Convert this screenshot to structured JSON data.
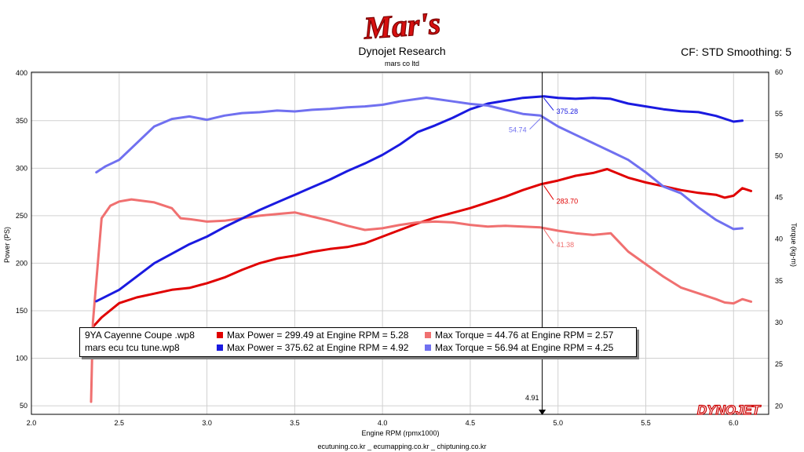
{
  "header": {
    "logo_text": "Mar's",
    "title": "Dynojet Research",
    "subtitle": "mars co ltd",
    "correction": "CF: STD Smoothing: 5",
    "brand": "DYNOJET"
  },
  "footer": {
    "text": "ecutuning.co.kr _ ecumapping.co.kr _ chiptuning.co.kr"
  },
  "colors": {
    "run1_power": "#e00000",
    "run1_torque": "#f07070",
    "run2_power": "#1a1ae0",
    "run2_torque": "#7070f0"
  },
  "legend": {
    "rows": [
      {
        "file": "9YA Cayenne Coupe .wp8",
        "power": "Max Power = 299.49 at Engine RPM = 5.28",
        "torque": "Max Torque = 44.76 at Engine RPM = 2.57"
      },
      {
        "file": "mars ecu tcu tune.wp8",
        "power": "Max Power = 375.62 at Engine RPM = 4.92",
        "torque": "Max Torque = 56.94 at Engine RPM = 4.25"
      }
    ]
  },
  "chart_data": {
    "type": "line",
    "xlabel": "Engine RPM (rpmx1000)",
    "ylabel": "Power (PS)",
    "y2label": "Torque (kg-m)",
    "xlim": [
      2.0,
      6.2
    ],
    "ylim": [
      41,
      401
    ],
    "y2lim": [
      19,
      60
    ],
    "xticks": [
      "2.0",
      "2.5",
      "3.0",
      "3.5",
      "4.0",
      "4.5",
      "5.0",
      "5.5",
      "6.0"
    ],
    "yticks": [
      "50",
      "100",
      "150",
      "200",
      "250",
      "300",
      "350",
      "400"
    ],
    "y2ticks": [
      "20",
      "25",
      "30",
      "35",
      "40",
      "45",
      "50",
      "55",
      "60"
    ],
    "grid": true,
    "cursor": {
      "x": 4.91,
      "label": "4.91"
    },
    "annotations": [
      {
        "series": "run2_power",
        "x": 4.91,
        "text": "375.28"
      },
      {
        "series": "run2_torque",
        "x": 4.91,
        "text": "54.74"
      },
      {
        "series": "run1_power",
        "x": 4.91,
        "text": "283.70"
      },
      {
        "series": "run1_torque",
        "x": 4.91,
        "text": "41.38"
      }
    ],
    "series": [
      {
        "id": "run1_power",
        "axis": "left",
        "x": [
          2.35,
          2.4,
          2.5,
          2.6,
          2.7,
          2.8,
          2.9,
          3.0,
          3.1,
          3.2,
          3.3,
          3.4,
          3.5,
          3.6,
          3.7,
          3.8,
          3.9,
          4.0,
          4.1,
          4.2,
          4.3,
          4.4,
          4.5,
          4.6,
          4.7,
          4.8,
          4.9,
          5.0,
          5.1,
          5.2,
          5.28,
          5.4,
          5.5,
          5.6,
          5.7,
          5.8,
          5.9,
          5.95,
          6.0,
          6.05,
          6.1
        ],
        "y": [
          133,
          143,
          158,
          164,
          168,
          172,
          174,
          179,
          185,
          193,
          200,
          205,
          208,
          212,
          215,
          217,
          221,
          228,
          235,
          242,
          248,
          253,
          258,
          264,
          270,
          277,
          283,
          287,
          292,
          295,
          299,
          290,
          285,
          281,
          277,
          274,
          272,
          269,
          271,
          279,
          276
        ]
      },
      {
        "id": "run1_torque",
        "axis": "right",
        "x": [
          2.34,
          2.35,
          2.4,
          2.45,
          2.5,
          2.57,
          2.7,
          2.8,
          2.85,
          2.9,
          3.0,
          3.1,
          3.2,
          3.3,
          3.4,
          3.5,
          3.6,
          3.7,
          3.8,
          3.9,
          4.0,
          4.1,
          4.2,
          4.3,
          4.4,
          4.5,
          4.6,
          4.7,
          4.8,
          4.9,
          5.0,
          5.1,
          5.2,
          5.3,
          5.4,
          5.5,
          5.6,
          5.7,
          5.8,
          5.9,
          5.95,
          6.0,
          6.05,
          6.1
        ],
        "y": [
          20.5,
          30,
          42.5,
          44,
          44.5,
          44.76,
          44.4,
          43.7,
          42.5,
          42.4,
          42.1,
          42.2,
          42.5,
          42.8,
          43,
          43.2,
          42.7,
          42.2,
          41.6,
          41.1,
          41.3,
          41.7,
          42,
          42.1,
          42,
          41.7,
          41.5,
          41.6,
          41.5,
          41.4,
          41,
          40.7,
          40.5,
          40.7,
          38.5,
          37,
          35.5,
          34.2,
          33.5,
          32.8,
          32.4,
          32.3,
          32.8,
          32.5
        ]
      },
      {
        "id": "run2_power",
        "axis": "left",
        "x": [
          2.37,
          2.5,
          2.6,
          2.7,
          2.8,
          2.9,
          3.0,
          3.1,
          3.2,
          3.3,
          3.4,
          3.5,
          3.6,
          3.7,
          3.8,
          3.9,
          4.0,
          4.1,
          4.2,
          4.3,
          4.4,
          4.5,
          4.6,
          4.7,
          4.8,
          4.92,
          5.0,
          5.1,
          5.2,
          5.3,
          5.4,
          5.5,
          5.6,
          5.7,
          5.8,
          5.9,
          6.0,
          6.05
        ],
        "y": [
          160,
          172,
          186,
          200,
          210,
          220,
          228,
          238,
          247,
          256,
          264,
          272,
          280,
          288,
          297,
          305,
          314,
          325,
          338,
          345,
          353,
          362,
          368,
          371,
          374,
          375.6,
          374,
          373,
          374,
          373,
          368,
          365,
          362,
          360,
          359,
          355,
          349,
          350
        ]
      },
      {
        "id": "run2_torque",
        "axis": "right",
        "x": [
          2.37,
          2.42,
          2.5,
          2.6,
          2.7,
          2.8,
          2.9,
          3.0,
          3.1,
          3.2,
          3.3,
          3.4,
          3.5,
          3.6,
          3.7,
          3.8,
          3.9,
          4.0,
          4.1,
          4.2,
          4.25,
          4.3,
          4.4,
          4.5,
          4.6,
          4.7,
          4.8,
          4.9,
          5.0,
          5.1,
          5.2,
          5.3,
          5.4,
          5.5,
          5.6,
          5.7,
          5.8,
          5.9,
          6.0,
          6.05
        ],
        "y": [
          48,
          48.7,
          49.5,
          51.5,
          53.5,
          54.4,
          54.7,
          54.3,
          54.8,
          55.1,
          55.2,
          55.4,
          55.3,
          55.5,
          55.6,
          55.8,
          55.9,
          56.1,
          56.5,
          56.8,
          56.94,
          56.8,
          56.5,
          56.2,
          56,
          55.5,
          55,
          54.8,
          53.5,
          52.5,
          51.5,
          50.5,
          49.5,
          48,
          46.3,
          45.5,
          43.8,
          42.3,
          41.2,
          41.3
        ]
      }
    ]
  }
}
